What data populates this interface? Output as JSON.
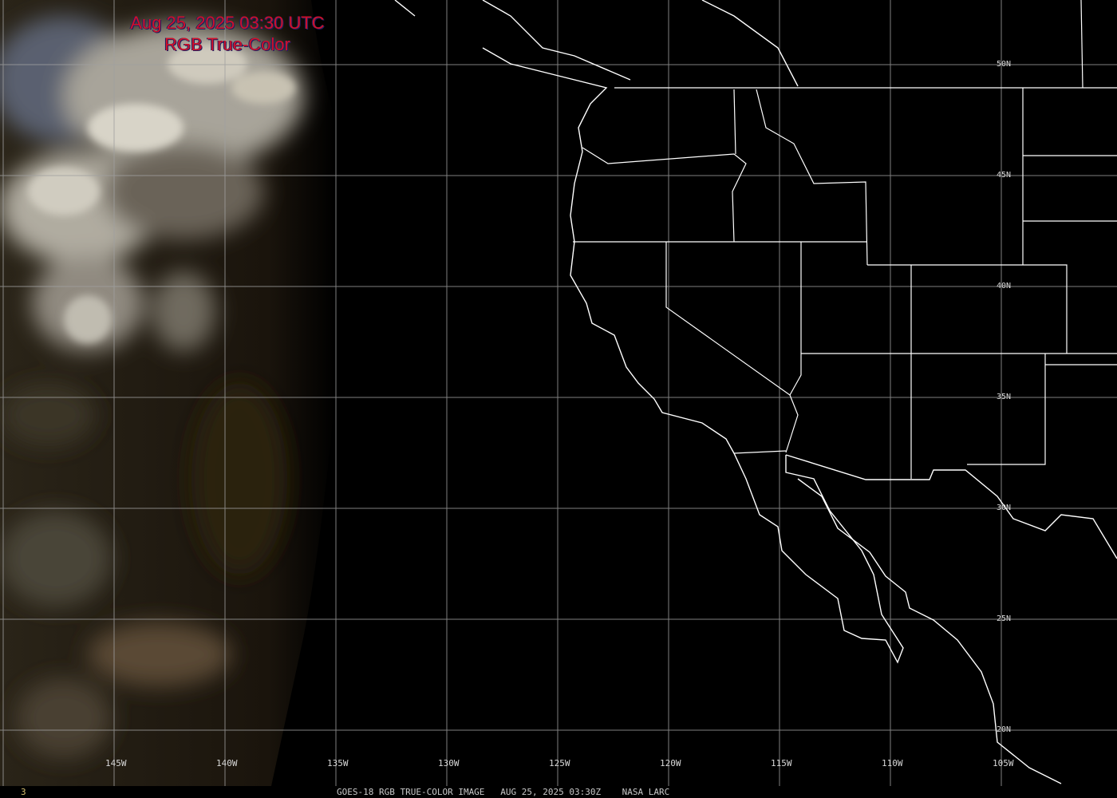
{
  "title": {
    "line1": "Aug 25, 2025 03:30 UTC",
    "line2": "RGB True-Color"
  },
  "latitude_labels": [
    "50N",
    "45N",
    "40N",
    "35N",
    "30N",
    "25N",
    "20N"
  ],
  "longitude_labels": [
    "145W",
    "140W",
    "135W",
    "130W",
    "125W",
    "120W",
    "115W",
    "110W",
    "105W"
  ],
  "footer": {
    "frame_number": "3",
    "caption": "GOES-18 RGB TRUE-COLOR IMAGE   AUG 25, 2025 03:30Z    NASA LARC"
  },
  "colors": {
    "title": "#d0102a",
    "grid": "#a0a0a0",
    "borders": "#ffffff",
    "background": "#000000"
  }
}
